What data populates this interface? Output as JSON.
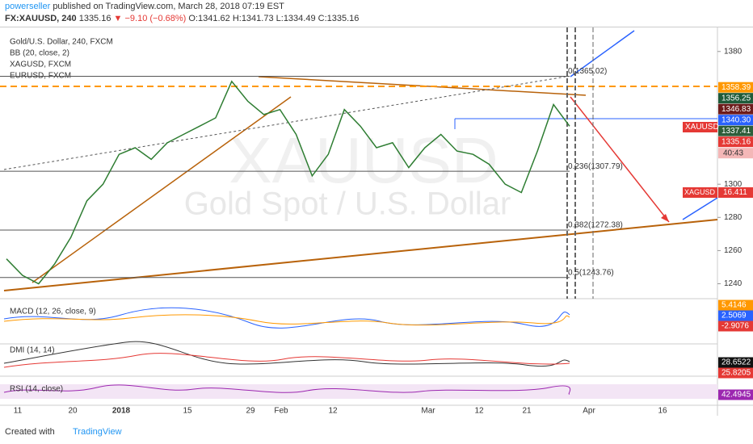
{
  "header": {
    "author": "powerseller",
    "published": "published on TradingView.com, March 28, 2018 07:19 EST",
    "symbol": "FX:XAUUSD, 240",
    "last": "1335.16",
    "change": "▼ −9.10 (−0.68%)",
    "ohlc": [
      "O:1341.62",
      "H:1341.73",
      "L:1334.49",
      "C:1335.16"
    ]
  },
  "legend": [
    "Gold/U.S. Dollar, 240, FXCM",
    "BB (20, close, 2)",
    "XAGUSD, FXCM",
    "EURUSD, FXCM"
  ],
  "watermark": {
    "symbol": "XAUUSD",
    "name": "Gold Spot / U.S. Dollar"
  },
  "price": {
    "color": "#2e7d32",
    "values": [
      1255,
      1245,
      1240,
      1252,
      1268,
      1290,
      1300,
      1318,
      1322,
      1315,
      1325,
      1330,
      1335,
      1340,
      1362,
      1350,
      1342,
      1345,
      1330,
      1305,
      1318,
      1345,
      1335,
      1322,
      1325,
      1310,
      1322,
      1330,
      1320,
      1318,
      1312,
      1300,
      1295,
      1320,
      1348,
      1335
    ],
    "ylim": [
      1231,
      1394
    ],
    "yticks": [
      1240,
      1260,
      1280,
      1300,
      1380
    ]
  },
  "price_labels": [
    {
      "value": 1358.39,
      "label": "1358.39",
      "color": "#ff9800"
    },
    {
      "value": 1356.25,
      "label": "1356.25",
      "color": "#1e5b3a"
    },
    {
      "value": 1346.83,
      "label": "1346.83",
      "color": "#6d1b1b"
    },
    {
      "value": 1340.3,
      "label": "1340.30",
      "color": "#2962ff"
    },
    {
      "value": 1337.41,
      "label": "1337.41",
      "color": "#2e5e3a"
    },
    {
      "value": 1335.16,
      "label": "1335.16",
      "color": "#e53935"
    }
  ],
  "countdown": "40:43",
  "symbol_tags": [
    {
      "name": "XAUUSD"
    },
    {
      "name": "XAGUSD",
      "label": "16.411"
    }
  ],
  "fib": [
    {
      "value": 1365.02,
      "label": "0(1365.02)"
    },
    {
      "value": 1307.79,
      "label": "0.236(1307.79)"
    },
    {
      "value": 1272.38,
      "label": "0.382(1272.38)"
    },
    {
      "value": 1243.76,
      "label": "0.5(1243.76)"
    }
  ],
  "xaxis": [
    "11",
    "20",
    "2018",
    "15",
    "29",
    "Feb",
    "12",
    "Mar",
    "12",
    "21",
    "Apr",
    "16"
  ],
  "panes": [
    {
      "title": "MACD (12, 26, close, 9)",
      "labels": [
        {
          "label": "5.4146",
          "color": "#ff9800"
        },
        {
          "label": "2.5069",
          "color": "#2962ff"
        },
        {
          "label": "-2.9076",
          "color": "#e53935"
        }
      ]
    },
    {
      "title": "DMI (14, 14)",
      "labels": [
        {
          "label": "28.6522",
          "color": "#111111"
        },
        {
          "label": "25.8205",
          "color": "#e53935"
        }
      ]
    },
    {
      "title": "RSI (14, close)",
      "labels": [
        {
          "label": "42.4945",
          "color": "#9c27b0"
        }
      ]
    }
  ],
  "footer": {
    "text": "Created with",
    "brand": "TradingView"
  }
}
